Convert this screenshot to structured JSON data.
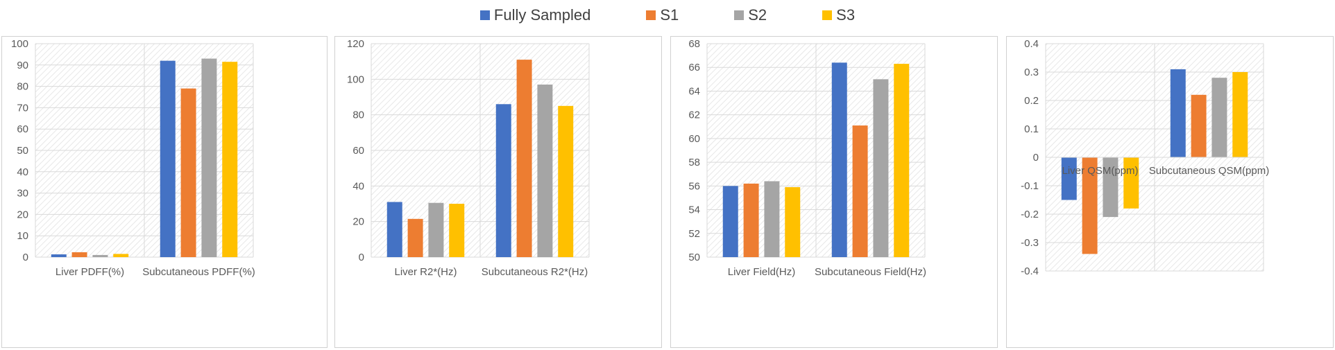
{
  "legend": [
    {
      "label": "Fully Sampled",
      "color": "#4472C4"
    },
    {
      "label": "S1",
      "color": "#ED7D31"
    },
    {
      "label": "S2",
      "color": "#A5A5A5"
    },
    {
      "label": "S3",
      "color": "#FFC000"
    }
  ],
  "chart_data": [
    {
      "type": "bar",
      "categories": [
        "Liver PDFF(%)",
        "Subcutaneous PDFF(%)"
      ],
      "series": [
        {
          "name": "Fully Sampled",
          "values": [
            1.3,
            92
          ]
        },
        {
          "name": "S1",
          "values": [
            2.3,
            79
          ]
        },
        {
          "name": "S2",
          "values": [
            1.0,
            93
          ]
        },
        {
          "name": "S3",
          "values": [
            1.5,
            91.5
          ]
        }
      ],
      "ylim": [
        0,
        100
      ],
      "yticks": [
        "0",
        "10",
        "20",
        "30",
        "40",
        "50",
        "60",
        "70",
        "80",
        "90",
        "100"
      ],
      "grid": true,
      "legend": "top"
    },
    {
      "type": "bar",
      "categories": [
        "Liver R2*(Hz)",
        "Subcutaneous R2*(Hz)"
      ],
      "series": [
        {
          "name": "Fully Sampled",
          "values": [
            31,
            86
          ]
        },
        {
          "name": "S1",
          "values": [
            21.5,
            111
          ]
        },
        {
          "name": "S2",
          "values": [
            30.5,
            97
          ]
        },
        {
          "name": "S3",
          "values": [
            30,
            85
          ]
        }
      ],
      "ylim": [
        0,
        120
      ],
      "yticks": [
        "0",
        "20",
        "40",
        "60",
        "80",
        "100",
        "120"
      ],
      "grid": true,
      "legend": "top"
    },
    {
      "type": "bar",
      "categories": [
        "Liver Field(Hz)",
        "Subcutaneous Field(Hz)"
      ],
      "series": [
        {
          "name": "Fully Sampled",
          "values": [
            56.0,
            66.4
          ]
        },
        {
          "name": "S1",
          "values": [
            56.2,
            61.1
          ]
        },
        {
          "name": "S2",
          "values": [
            56.4,
            65.0
          ]
        },
        {
          "name": "S3",
          "values": [
            55.9,
            66.3
          ]
        }
      ],
      "ylim": [
        50,
        68
      ],
      "yticks": [
        "50",
        "52",
        "54",
        "56",
        "58",
        "60",
        "62",
        "64",
        "66",
        "68"
      ],
      "grid": true,
      "legend": "top"
    },
    {
      "type": "bar",
      "categories": [
        "Liver QSM(ppm)",
        "Subcutaneous QSM(ppm)"
      ],
      "series": [
        {
          "name": "Fully Sampled",
          "values": [
            -0.15,
            0.31
          ]
        },
        {
          "name": "S1",
          "values": [
            -0.34,
            0.22
          ]
        },
        {
          "name": "S2",
          "values": [
            -0.21,
            0.28
          ]
        },
        {
          "name": "S3",
          "values": [
            -0.18,
            0.3
          ]
        }
      ],
      "ylim": [
        -0.4,
        0.4
      ],
      "yticks": [
        "-0.4",
        "-0.3",
        "-0.2",
        "-0.1",
        "0",
        "0.1",
        "0.2",
        "0.3",
        "0.4"
      ],
      "grid": true,
      "legend": "top"
    }
  ]
}
